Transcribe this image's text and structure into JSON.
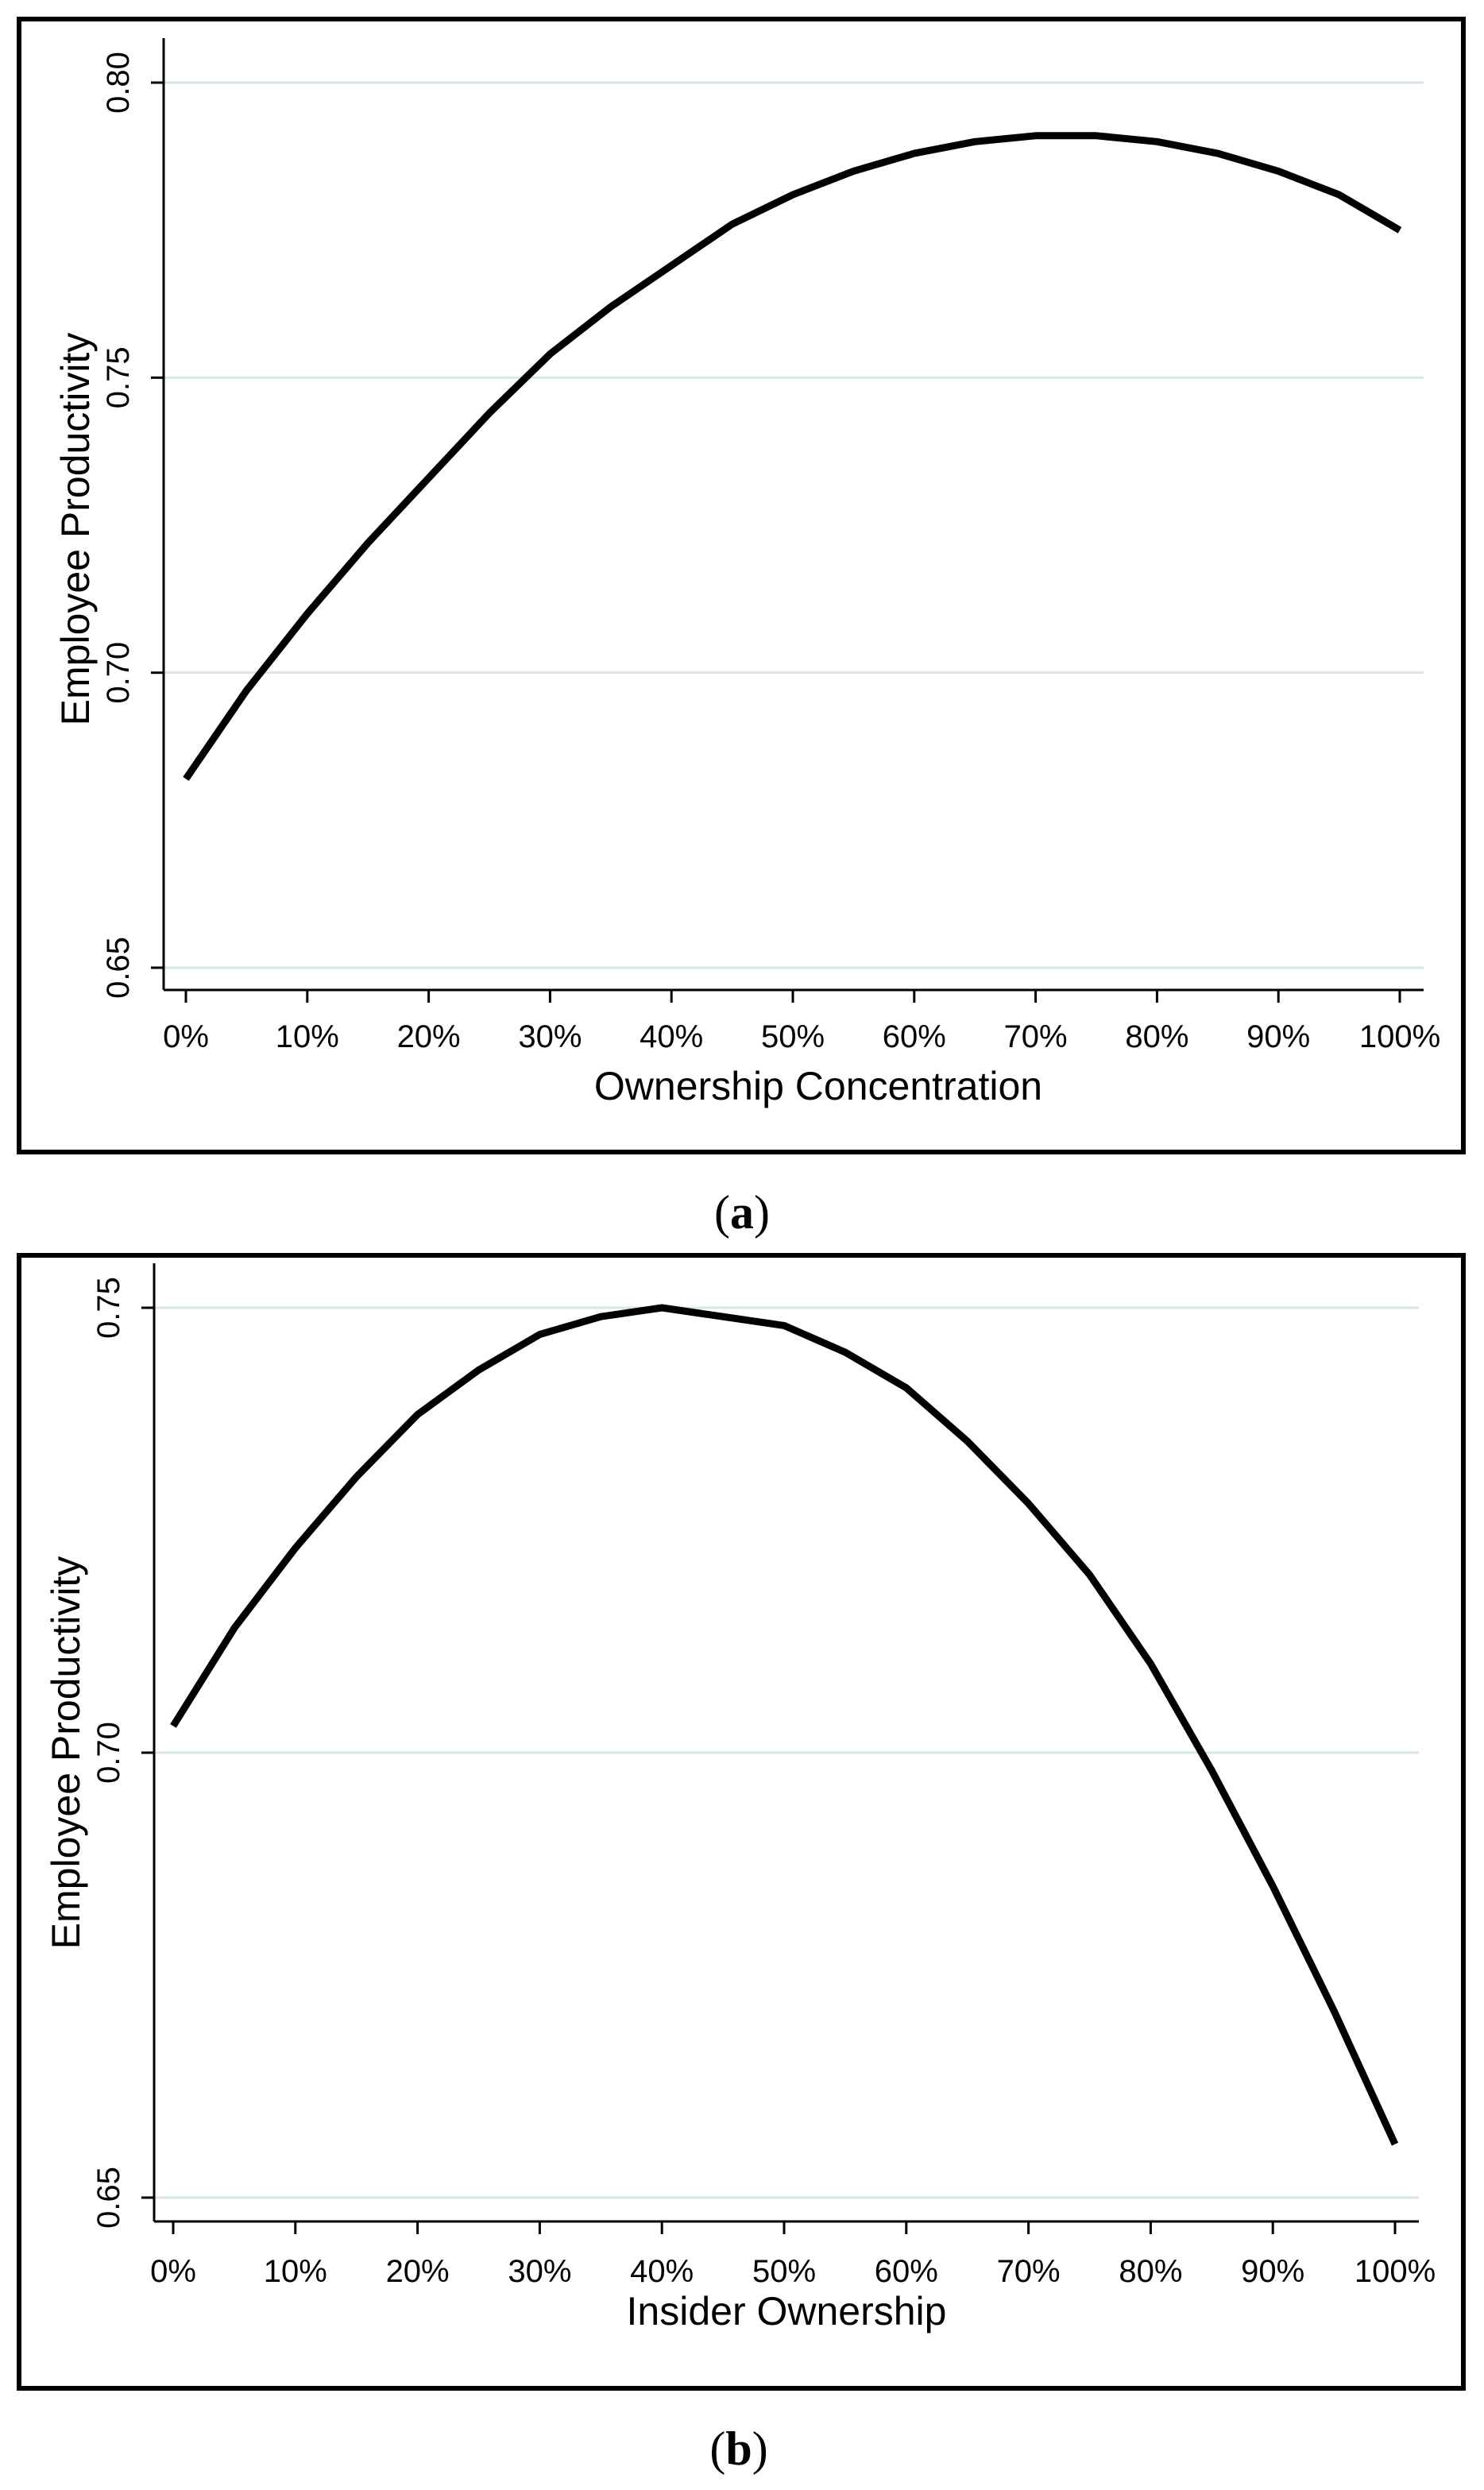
{
  "chart_data": [
    {
      "type": "line",
      "panel_label": "a",
      "title": "",
      "xlabel": "Ownership Concentration",
      "ylabel": "Employee Productivity",
      "xlim": [
        0,
        100
      ],
      "ylim": [
        0.65,
        0.8
      ],
      "grid": "horizontal",
      "xticks": [
        0,
        10,
        20,
        30,
        40,
        50,
        60,
        70,
        80,
        90,
        100
      ],
      "xtick_labels": [
        "0%",
        "10%",
        "20%",
        "30%",
        "40%",
        "50%",
        "60%",
        "70%",
        "80%",
        "90%",
        "100%"
      ],
      "yticks": [
        0.65,
        0.7,
        0.75,
        0.8
      ],
      "ytick_labels": [
        "0.65",
        "0.70",
        "0.75",
        "0.80"
      ],
      "series": [
        {
          "name": "Employee Productivity",
          "x": [
            0,
            5,
            10,
            15,
            20,
            25,
            30,
            35,
            40,
            45,
            50,
            55,
            60,
            65,
            70,
            75,
            80,
            85,
            90,
            95,
            100
          ],
          "values": [
            0.682,
            0.697,
            0.71,
            0.722,
            0.733,
            0.744,
            0.754,
            0.762,
            0.769,
            0.776,
            0.781,
            0.785,
            0.788,
            0.79,
            0.791,
            0.791,
            0.79,
            0.788,
            0.785,
            0.781,
            0.775
          ]
        }
      ]
    },
    {
      "type": "line",
      "panel_label": "b",
      "title": "",
      "xlabel": "Insider Ownership",
      "ylabel": "Employee Productivity",
      "xlim": [
        0,
        100
      ],
      "ylim": [
        0.65,
        0.75
      ],
      "grid": "horizontal",
      "xticks": [
        0,
        10,
        20,
        30,
        40,
        50,
        60,
        70,
        80,
        90,
        100
      ],
      "xtick_labels": [
        "0%",
        "10%",
        "20%",
        "30%",
        "40%",
        "50%",
        "60%",
        "70%",
        "80%",
        "90%",
        "100%"
      ],
      "yticks": [
        0.65,
        0.7,
        0.75
      ],
      "ytick_labels": [
        "0.65",
        "0.70",
        "0.75"
      ],
      "series": [
        {
          "name": "Employee Productivity",
          "x": [
            0,
            5,
            10,
            15,
            20,
            25,
            30,
            35,
            40,
            45,
            50,
            55,
            60,
            65,
            70,
            75,
            80,
            85,
            90,
            95,
            100
          ],
          "values": [
            0.703,
            0.714,
            0.723,
            0.731,
            0.738,
            0.743,
            0.747,
            0.749,
            0.75,
            0.749,
            0.748,
            0.745,
            0.741,
            0.735,
            0.728,
            0.72,
            0.71,
            0.698,
            0.685,
            0.671,
            0.656
          ]
        }
      ]
    }
  ]
}
